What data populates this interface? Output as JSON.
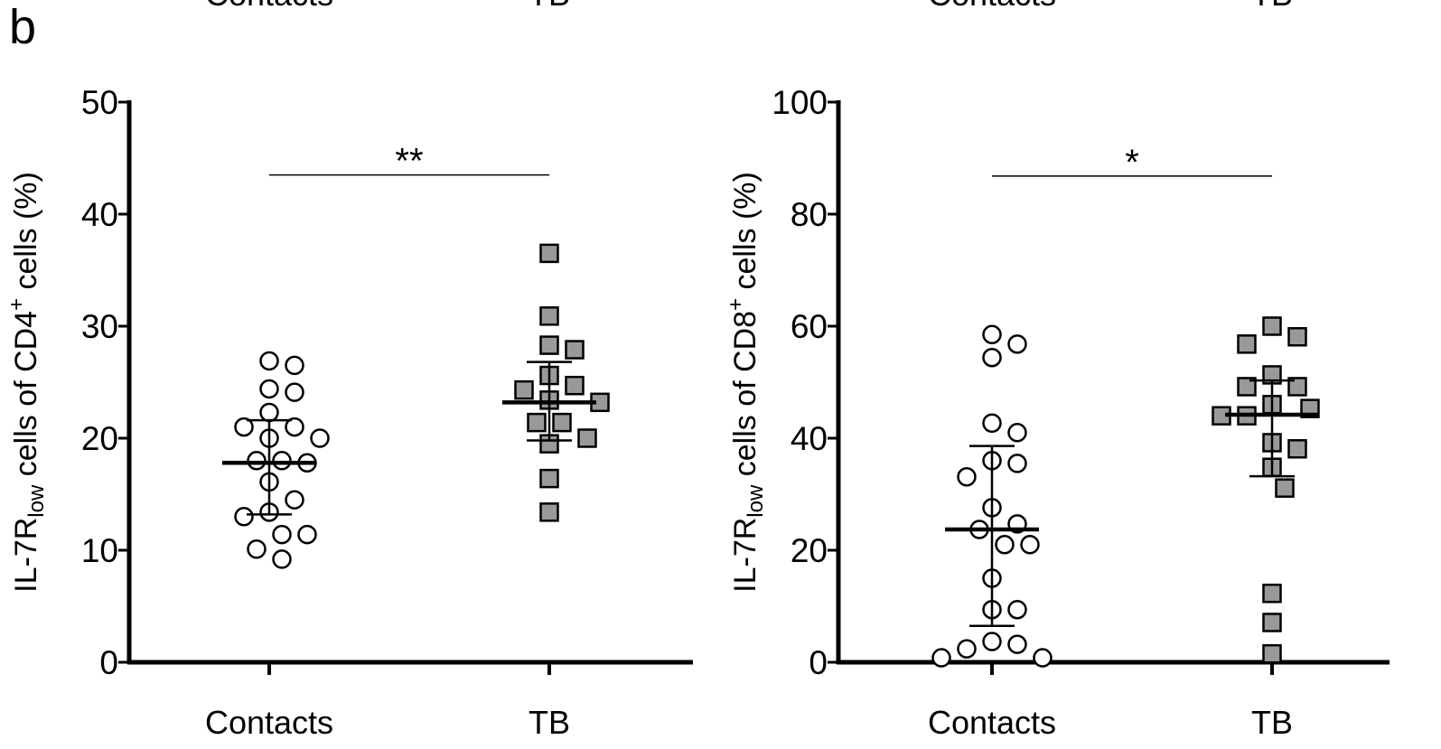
{
  "panel_label": "b",
  "cropped_top_labels": [
    "Contacts",
    "TB",
    "Contacts",
    "TB"
  ],
  "chart_data": [
    {
      "type": "dotplot",
      "ylabel": {
        "main": "IL-7R",
        "sub": "low",
        "mid": " cells of CD4",
        "sup": "+",
        "end": " cells (%)"
      },
      "categories": [
        "Contacts",
        "TB"
      ],
      "ylim": [
        0,
        50
      ],
      "yticks": [
        0,
        10,
        20,
        30,
        40,
        50
      ],
      "groups": [
        {
          "marker": "circle",
          "color": "#ffffff",
          "values": [
            26.9,
            26.5,
            24.1,
            24.4,
            21.0,
            22.3,
            20.0,
            20.0,
            21.0,
            18.0,
            18.0,
            17.8,
            16.1,
            14.5,
            13.4,
            13.0,
            11.4,
            11.4,
            10.1,
            9.2
          ],
          "median": 17.8,
          "error_low": 13.2,
          "error_high": 21.6
        },
        {
          "marker": "square",
          "color": "#999999",
          "values": [
            36.5,
            30.9,
            28.3,
            27.9,
            25.6,
            24.3,
            24.7,
            23.2,
            23.4,
            21.4,
            21.4,
            20.0,
            19.5,
            16.4,
            13.4
          ],
          "median": 23.2,
          "error_low": 19.8,
          "error_high": 26.8
        }
      ],
      "significance": {
        "y": 43.5,
        "label": "**"
      }
    },
    {
      "type": "dotplot",
      "ylabel": {
        "main": "IL-7R",
        "sub": "low",
        "mid": " cells of CD8",
        "sup": "+",
        "end": " cells (%)"
      },
      "categories": [
        "Contacts",
        "TB"
      ],
      "ylim": [
        0,
        100
      ],
      "yticks": [
        0,
        20,
        40,
        60,
        80,
        100
      ],
      "groups": [
        {
          "marker": "circle",
          "color": "#ffffff",
          "values": [
            56.8,
            58.5,
            54.4,
            41.0,
            42.7,
            35.5,
            36.0,
            33.1,
            27.6,
            24.7,
            23.7,
            21.0,
            21.0,
            15.0,
            9.4,
            9.4,
            3.7,
            3.2,
            2.4,
            0.8,
            0.8
          ],
          "median": 23.7,
          "error_low": 6.5,
          "error_high": 38.6
        },
        {
          "marker": "square",
          "color": "#999999",
          "values": [
            58.1,
            56.8,
            60.0,
            51.3,
            49.2,
            49.2,
            45.3,
            46.0,
            44.0,
            39.2,
            44.0,
            38.1,
            34.8,
            31.1,
            12.3,
            7.1,
            1.5
          ],
          "median": 44.2,
          "error_low": 33.2,
          "error_high": 50.3
        }
      ],
      "significance": {
        "y": 86.8,
        "label": "*"
      }
    }
  ]
}
